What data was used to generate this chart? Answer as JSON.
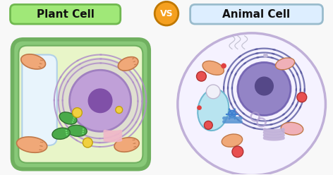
{
  "bg_color": "#f8f8f8",
  "plant_label": "Plant Cell",
  "animal_label": "Animal Cell",
  "vs_label": "VS",
  "plant_badge_fill": "#a0e878",
  "plant_badge_edge": "#70b850",
  "animal_badge_fill": "#ddeeff",
  "animal_badge_edge": "#99bbcc",
  "vs_fill": "#f5a020",
  "vs_edge": "#c07800",
  "plant_wall_fill": "#88c878",
  "plant_wall_edge": "#70b060",
  "plant_membrane_fill": "#e8f5c8",
  "plant_membrane_edge": "#a0c880",
  "vacuole_fill": "#e8f4fc",
  "vacuole_edge": "#b0d0e8",
  "nucleus_halo_fill": "#d0b8e0",
  "nucleus_halo_edge": "#b898c8",
  "nucleus_fill": "#c0a0d8",
  "nucleus_edge": "#a080c0",
  "nucleolus_fill": "#8050a8",
  "chromatin_color": "#b090c8",
  "chloroplast_fill": "#4aaa4a",
  "chloroplast_edge": "#307030",
  "mito_fill": "#f0a878",
  "mito_edge": "#c07848",
  "golgi_color": "#f0b8c8",
  "yellow_dot": "#f0d040",
  "yellow_dot_edge": "#c0a010",
  "animal_cell_fill": "#f5f2ff",
  "animal_cell_edge": "#c0b0d8",
  "an_nucleus_halo": "#7060a8",
  "an_nucleus_fill": "#8878c0",
  "an_nucleus_edge": "#7060b0",
  "an_nucleolus_fill": "#554888",
  "an_chromatin": "#5858a0",
  "an_mito_fill": "#f0a878",
  "an_mito_edge": "#c07848",
  "an_vacuole_fill": "#b8e4f0",
  "an_vacuole_edge": "#70b8d0",
  "an_lyso_fill": "#e85050",
  "an_lyso_edge": "#b03030",
  "an_vesicle_fill": "#f0f0f8",
  "an_vesicle_edge": "#c0b8d0",
  "an_golgi_color": "#c0b0d8",
  "an_centriole": "#4080d0",
  "an_er_color": "#b0a0d0",
  "blue_rod_color": "#5090d0",
  "small_red": "#e04040",
  "pink_mito": "#f0b0b8"
}
